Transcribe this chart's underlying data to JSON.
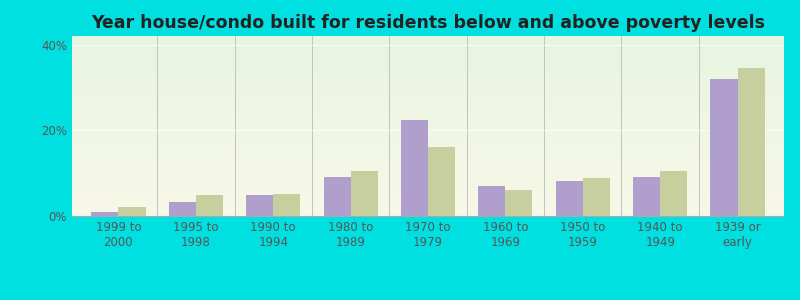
{
  "title": "Year house/condo built for residents below and above poverty levels",
  "categories": [
    "1999 to\n2000",
    "1995 to\n1998",
    "1990 to\n1994",
    "1980 to\n1989",
    "1970 to\n1979",
    "1960 to\n1969",
    "1950 to\n1959",
    "1940 to\n1949",
    "1939 or\nearly"
  ],
  "below_poverty": [
    1.0,
    3.2,
    5.0,
    9.0,
    22.5,
    7.0,
    8.2,
    9.0,
    32.0
  ],
  "above_poverty": [
    2.2,
    5.0,
    5.2,
    10.5,
    16.0,
    6.0,
    8.8,
    10.5,
    34.5
  ],
  "below_color": "#b09fcc",
  "above_color": "#c8cf9e",
  "background_outer": "#00e0e0",
  "ylim": [
    0,
    42
  ],
  "yticks": [
    0,
    20,
    40
  ],
  "ytick_labels": [
    "0%",
    "20%",
    "40%"
  ],
  "bar_width": 0.35,
  "title_fontsize": 12.5,
  "tick_fontsize": 8.5,
  "legend_fontsize": 9
}
